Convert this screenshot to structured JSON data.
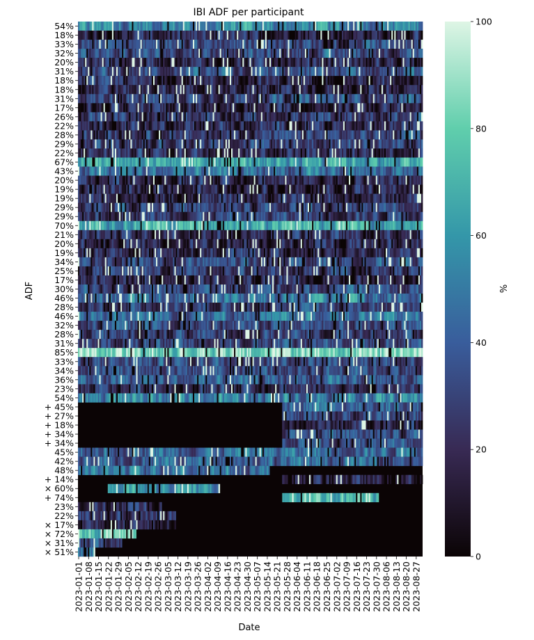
{
  "chart_data": {
    "type": "heatmap",
    "title": "IBI ADF per participant",
    "xlabel": "Date",
    "ylabel": "ADF",
    "colorbar_label": "%",
    "value_range": [
      0,
      100
    ],
    "colorbar_ticks": [
      "0",
      "20",
      "40",
      "60",
      "80",
      "100"
    ],
    "colormap": "mako",
    "colormap_stops": [
      "#0b0405",
      "#382a54",
      "#395d9c",
      "#3497a9",
      "#60ceac",
      "#def5e5"
    ],
    "grid": false,
    "date_range": [
      "2023-01-01",
      "2023-08-31"
    ],
    "x_tick_labels": [
      "2023-01-01",
      "2023-01-08",
      "2023-01-15",
      "2023-01-22",
      "2023-01-29",
      "2023-02-05",
      "2023-02-12",
      "2023-02-19",
      "2023-02-26",
      "2023-03-05",
      "2023-03-12",
      "2023-03-19",
      "2023-03-26",
      "2023-04-02",
      "2023-04-09",
      "2023-04-16",
      "2023-04-23",
      "2023-04-30",
      "2023-05-07",
      "2023-05-14",
      "2023-05-21",
      "2023-05-28",
      "2023-06-04",
      "2023-06-11",
      "2023-06-18",
      "2023-06-25",
      "2023-07-02",
      "2023-07-09",
      "2023-07-16",
      "2023-07-23",
      "2023-07-30",
      "2023-08-06",
      "2023-08-13",
      "2023-08-20",
      "2023-08-27"
    ],
    "rows": [
      {
        "label": "54%",
        "mean": 54,
        "active": [
          "2023-01-01",
          "2023-08-31"
        ]
      },
      {
        "label": "18%",
        "mean": 18,
        "active": [
          "2023-01-01",
          "2023-08-31"
        ]
      },
      {
        "label": "33%",
        "mean": 33,
        "active": [
          "2023-01-01",
          "2023-08-31"
        ]
      },
      {
        "label": "32%",
        "mean": 32,
        "active": [
          "2023-01-01",
          "2023-08-31"
        ]
      },
      {
        "label": "20%",
        "mean": 20,
        "active": [
          "2023-01-01",
          "2023-08-31"
        ]
      },
      {
        "label": "31%",
        "mean": 31,
        "active": [
          "2023-01-01",
          "2023-08-31"
        ]
      },
      {
        "label": "18%",
        "mean": 18,
        "active": [
          "2023-01-01",
          "2023-08-31"
        ]
      },
      {
        "label": "18%",
        "mean": 18,
        "active": [
          "2023-01-01",
          "2023-08-31"
        ]
      },
      {
        "label": "31%",
        "mean": 31,
        "active": [
          "2023-01-01",
          "2023-08-31"
        ]
      },
      {
        "label": "17%",
        "mean": 17,
        "active": [
          "2023-01-01",
          "2023-08-31"
        ]
      },
      {
        "label": "26%",
        "mean": 26,
        "active": [
          "2023-01-01",
          "2023-08-31"
        ]
      },
      {
        "label": "22%",
        "mean": 22,
        "active": [
          "2023-01-01",
          "2023-08-31"
        ]
      },
      {
        "label": "28%",
        "mean": 28,
        "active": [
          "2023-01-01",
          "2023-08-31"
        ]
      },
      {
        "label": "29%",
        "mean": 29,
        "active": [
          "2023-01-01",
          "2023-08-31"
        ]
      },
      {
        "label": "22%",
        "mean": 22,
        "active": [
          "2023-01-01",
          "2023-08-31"
        ]
      },
      {
        "label": "67%",
        "mean": 67,
        "active": [
          "2023-01-01",
          "2023-08-31"
        ]
      },
      {
        "label": "43%",
        "mean": 43,
        "active": [
          "2023-01-01",
          "2023-08-31"
        ]
      },
      {
        "label": "20%",
        "mean": 20,
        "active": [
          "2023-01-01",
          "2023-08-31"
        ]
      },
      {
        "label": "19%",
        "mean": 19,
        "active": [
          "2023-01-01",
          "2023-08-31"
        ]
      },
      {
        "label": "19%",
        "mean": 19,
        "active": [
          "2023-01-01",
          "2023-08-31"
        ]
      },
      {
        "label": "29%",
        "mean": 29,
        "active": [
          "2023-01-01",
          "2023-08-31"
        ]
      },
      {
        "label": "29%",
        "mean": 29,
        "active": [
          "2023-01-01",
          "2023-08-31"
        ]
      },
      {
        "label": "70%",
        "mean": 70,
        "active": [
          "2023-01-01",
          "2023-08-31"
        ]
      },
      {
        "label": "21%",
        "mean": 21,
        "active": [
          "2023-01-01",
          "2023-08-31"
        ]
      },
      {
        "label": "20%",
        "mean": 20,
        "active": [
          "2023-01-01",
          "2023-08-31"
        ]
      },
      {
        "label": "19%",
        "mean": 19,
        "active": [
          "2023-01-01",
          "2023-08-31"
        ]
      },
      {
        "label": "34%",
        "mean": 34,
        "active": [
          "2023-01-01",
          "2023-08-31"
        ]
      },
      {
        "label": "25%",
        "mean": 25,
        "active": [
          "2023-01-01",
          "2023-08-31"
        ]
      },
      {
        "label": "17%",
        "mean": 17,
        "active": [
          "2023-01-01",
          "2023-08-31"
        ]
      },
      {
        "label": "30%",
        "mean": 30,
        "active": [
          "2023-01-01",
          "2023-08-31"
        ]
      },
      {
        "label": "46%",
        "mean": 46,
        "active": [
          "2023-01-01",
          "2023-08-31"
        ]
      },
      {
        "label": "28%",
        "mean": 28,
        "active": [
          "2023-01-01",
          "2023-08-31"
        ]
      },
      {
        "label": "46%",
        "mean": 46,
        "active": [
          "2023-01-01",
          "2023-08-31"
        ]
      },
      {
        "label": "32%",
        "mean": 32,
        "active": [
          "2023-01-01",
          "2023-08-31"
        ]
      },
      {
        "label": "28%",
        "mean": 28,
        "active": [
          "2023-01-01",
          "2023-08-31"
        ]
      },
      {
        "label": "31%",
        "mean": 31,
        "active": [
          "2023-01-01",
          "2023-08-31"
        ]
      },
      {
        "label": "85%",
        "mean": 85,
        "active": [
          "2023-01-01",
          "2023-08-31"
        ]
      },
      {
        "label": "33%",
        "mean": 33,
        "active": [
          "2023-01-01",
          "2023-08-31"
        ]
      },
      {
        "label": "34%",
        "mean": 34,
        "active": [
          "2023-01-01",
          "2023-08-31"
        ]
      },
      {
        "label": "36%",
        "mean": 36,
        "active": [
          "2023-01-01",
          "2023-08-31"
        ]
      },
      {
        "label": "23%",
        "mean": 23,
        "active": [
          "2023-01-01",
          "2023-08-31"
        ]
      },
      {
        "label": "54%",
        "mean": 54,
        "active": [
          "2023-01-01",
          "2023-08-31"
        ]
      },
      {
        "label": "+ 45%",
        "mean": 45,
        "active": [
          "2023-05-25",
          "2023-08-31"
        ]
      },
      {
        "label": "+ 27%",
        "mean": 27,
        "active": [
          "2023-05-25",
          "2023-08-31"
        ]
      },
      {
        "label": "+ 18%",
        "mean": 18,
        "active": [
          "2023-05-25",
          "2023-08-31"
        ]
      },
      {
        "label": "+ 34%",
        "mean": 34,
        "active": [
          "2023-05-25",
          "2023-08-31"
        ]
      },
      {
        "label": "+ 34%",
        "mean": 34,
        "active": [
          "2023-05-25",
          "2023-08-31"
        ]
      },
      {
        "label": "45%",
        "mean": 45,
        "active": [
          "2023-01-01",
          "2023-08-31"
        ]
      },
      {
        "label": "42%",
        "mean": 42,
        "active": [
          "2023-01-01",
          "2023-08-31"
        ]
      },
      {
        "label": "48%",
        "mean": 48,
        "active": [
          "2023-01-01",
          "2023-05-15"
        ]
      },
      {
        "label": "+ 14%",
        "mean": 14,
        "active": [
          "2023-05-25",
          "2023-08-31"
        ]
      },
      {
        "label": "× 60%",
        "mean": 60,
        "active": [
          "2023-01-22",
          "2023-04-10"
        ]
      },
      {
        "label": "+ 74%",
        "mean": 74,
        "active": [
          "2023-05-25",
          "2023-07-31"
        ]
      },
      {
        "label": "23%",
        "mean": 23,
        "active": [
          "2023-01-01",
          "2023-02-28"
        ]
      },
      {
        "label": "22%",
        "mean": 22,
        "active": [
          "2023-01-01",
          "2023-03-10"
        ]
      },
      {
        "label": "× 17%",
        "mean": 17,
        "active": [
          "2023-01-01",
          "2023-03-10"
        ]
      },
      {
        "label": "× 72%",
        "mean": 72,
        "active": [
          "2023-01-01",
          "2023-02-10"
        ]
      },
      {
        "label": "× 31%",
        "mean": 31,
        "active": [
          "2023-01-01",
          "2023-01-31"
        ]
      },
      {
        "label": "× 51%",
        "mean": 51,
        "active": [
          "2023-01-01",
          "2023-01-12"
        ]
      }
    ]
  }
}
